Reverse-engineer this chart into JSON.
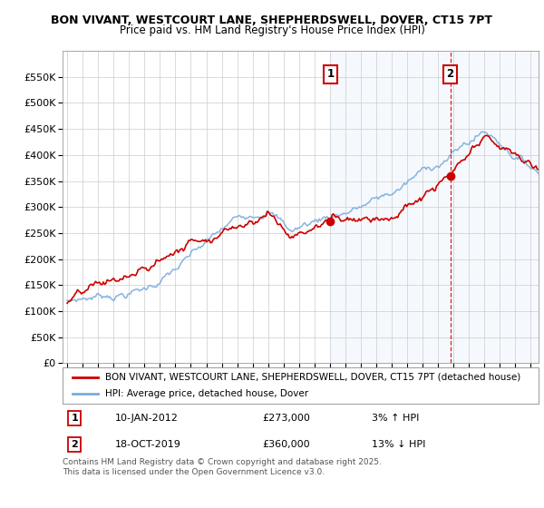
{
  "title1": "BON VIVANT, WESTCOURT LANE, SHEPHERDSWELL, DOVER, CT15 7PT",
  "title2": "Price paid vs. HM Land Registry's House Price Index (HPI)",
  "legend_line1": "BON VIVANT, WESTCOURT LANE, SHEPHERDSWELL, DOVER, CT15 7PT (detached house)",
  "legend_line2": "HPI: Average price, detached house, Dover",
  "annotation1_label": "1",
  "annotation1_date": "10-JAN-2012",
  "annotation1_price": "£273,000",
  "annotation1_hpi": "3% ↑ HPI",
  "annotation2_label": "2",
  "annotation2_date": "18-OCT-2019",
  "annotation2_price": "£360,000",
  "annotation2_hpi": "13% ↓ HPI",
  "footer": "Contains HM Land Registry data © Crown copyright and database right 2025.\nThis data is licensed under the Open Government Licence v3.0.",
  "line1_color": "#cc0000",
  "line2_color": "#7aacdc",
  "annotation_color": "#cc0000",
  "ylim": [
    0,
    600000
  ],
  "yticks": [
    0,
    50000,
    100000,
    150000,
    200000,
    250000,
    300000,
    350000,
    400000,
    450000,
    500000,
    550000
  ],
  "xlim_start": 1994.7,
  "xlim_end": 2025.5,
  "marker1_x": 2012.03,
  "marker1_y": 273000,
  "marker2_x": 2019.79,
  "marker2_y": 360000,
  "shaded_start": 2012.03,
  "shaded_end": 2025.5
}
